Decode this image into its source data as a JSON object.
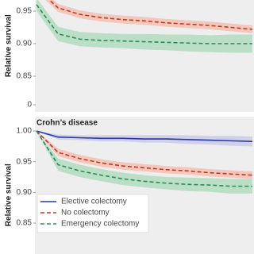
{
  "chart_data": [
    {
      "type": "line",
      "y_label": "Relative survival",
      "ylim": [
        0.83,
        1.0
      ],
      "yticks": [
        0.95,
        {
          "value": 0.9,
          "label": "0.90"
        },
        0.85,
        0
      ],
      "axis_break": true,
      "grid": false,
      "categories": [
        null,
        null,
        null,
        null,
        null,
        null,
        null,
        null,
        null,
        null,
        null
      ],
      "series": [
        {
          "name": "No colectomy",
          "color": "#c0392b",
          "dash": true,
          "band_color": "#f4b9a8",
          "values": [
            0.985,
            0.955,
            0.945,
            0.94,
            0.937,
            0.935,
            0.932,
            0.93,
            0.928,
            0.925,
            0.922
          ],
          "upper": [
            0.99,
            0.961,
            0.951,
            0.946,
            0.943,
            0.941,
            0.938,
            0.936,
            0.934,
            0.931,
            0.928
          ],
          "lower": [
            0.98,
            0.949,
            0.939,
            0.934,
            0.931,
            0.929,
            0.926,
            0.924,
            0.922,
            0.919,
            0.916
          ]
        },
        {
          "name": "Emergency colectomy",
          "color": "#2e8b57",
          "dash": true,
          "band_color": "#a9d8b8",
          "values": [
            0.96,
            0.915,
            0.907,
            0.905,
            0.904,
            0.903,
            0.902,
            0.901,
            0.9,
            0.9,
            0.9
          ],
          "upper": [
            0.97,
            0.926,
            0.918,
            0.916,
            0.915,
            0.915,
            0.914,
            0.914,
            0.913,
            0.914,
            0.914
          ],
          "lower": [
            0.95,
            0.904,
            0.896,
            0.894,
            0.893,
            0.891,
            0.89,
            0.888,
            0.887,
            0.886,
            0.886
          ]
        }
      ]
    },
    {
      "type": "line",
      "title": "Crohn’s disease",
      "y_label": "Relative survival",
      "ylim": [
        0.83,
        1.0
      ],
      "yticks": [
        {
          "value": 1.0,
          "label": "1.00"
        },
        0.95,
        {
          "value": 0.9,
          "label": "0.90"
        },
        0.85
      ],
      "axis_break": false,
      "grid": false,
      "legend": "lower left",
      "categories": [
        null,
        null,
        null,
        null,
        null,
        null,
        null,
        null,
        null,
        null,
        null
      ],
      "series": [
        {
          "name": "Elective colectomy",
          "color": "#2a3a9c",
          "dash": false,
          "band_color": "#c5c5ea",
          "values": [
            1.0,
            0.99,
            0.989,
            0.988,
            0.988,
            0.987,
            0.987,
            0.986,
            0.985,
            0.984,
            0.983
          ],
          "upper": [
            1.0,
            0.994,
            0.993,
            0.993,
            0.993,
            0.993,
            0.993,
            0.993,
            0.992,
            0.992,
            0.991
          ],
          "lower": [
            1.0,
            0.986,
            0.985,
            0.983,
            0.983,
            0.981,
            0.981,
            0.979,
            0.978,
            0.976,
            0.975
          ]
        },
        {
          "name": "No colectomy",
          "color": "#c0392b",
          "dash": true,
          "band_color": "#f4b9a8",
          "values": [
            1.0,
            0.965,
            0.955,
            0.948,
            0.943,
            0.94,
            0.937,
            0.935,
            0.932,
            0.93,
            0.928
          ],
          "upper": [
            1.0,
            0.971,
            0.961,
            0.954,
            0.949,
            0.946,
            0.943,
            0.941,
            0.938,
            0.936,
            0.934
          ],
          "lower": [
            1.0,
            0.959,
            0.949,
            0.942,
            0.937,
            0.934,
            0.931,
            0.929,
            0.926,
            0.924,
            0.922
          ]
        },
        {
          "name": "Emergency colectomy",
          "color": "#2e8b57",
          "dash": true,
          "band_color": "#a9d8b8",
          "values": [
            1.0,
            0.945,
            0.935,
            0.928,
            0.922,
            0.918,
            0.915,
            0.913,
            0.912,
            0.91,
            0.91
          ],
          "upper": [
            1.0,
            0.955,
            0.945,
            0.938,
            0.932,
            0.928,
            0.925,
            0.924,
            0.923,
            0.922,
            0.922
          ],
          "lower": [
            1.0,
            0.935,
            0.925,
            0.918,
            0.912,
            0.908,
            0.905,
            0.902,
            0.901,
            0.898,
            0.898
          ]
        }
      ]
    }
  ]
}
